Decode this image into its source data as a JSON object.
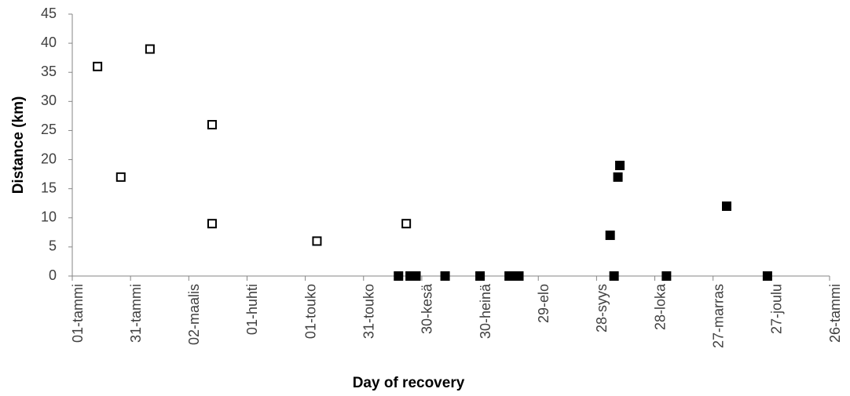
{
  "chart_data": {
    "type": "scatter",
    "x_label": "Day of recovery",
    "y_label": "Distance (km)",
    "xlim": [
      0,
      390
    ],
    "xticks": [
      {
        "value": 0,
        "label": "01-tammi"
      },
      {
        "value": 30,
        "label": "31-tammi"
      },
      {
        "value": 60,
        "label": "02-maalis"
      },
      {
        "value": 90,
        "label": "01-huhti"
      },
      {
        "value": 120,
        "label": "01-touko"
      },
      {
        "value": 150,
        "label": "31-touko"
      },
      {
        "value": 180,
        "label": "30-kesä"
      },
      {
        "value": 210,
        "label": "30-heinä"
      },
      {
        "value": 240,
        "label": "29-elo"
      },
      {
        "value": 270,
        "label": "28-syys"
      },
      {
        "value": 300,
        "label": "28-loka"
      },
      {
        "value": 330,
        "label": "27-marras"
      },
      {
        "value": 360,
        "label": "27-joulu"
      },
      {
        "value": 390,
        "label": "26-tammi"
      }
    ],
    "ylim": [
      0,
      45
    ],
    "yticks": [
      0,
      5,
      10,
      15,
      20,
      25,
      30,
      35,
      40,
      45
    ],
    "grid": false,
    "series": [
      {
        "color": "#000000",
        "fill": "#ffffff",
        "x": [
          13,
          25,
          40,
          72,
          72,
          126,
          172
        ],
        "values": [
          36,
          17,
          39,
          26,
          9,
          6,
          9
        ]
      },
      {
        "color": "#000000",
        "fill": "#000000",
        "x": [
          168,
          174,
          177,
          192,
          210,
          225,
          228,
          230,
          277,
          279,
          281,
          282,
          306,
          337,
          358
        ],
        "values": [
          0,
          0,
          0,
          0,
          0,
          0,
          0,
          0,
          7,
          0,
          17,
          19,
          0,
          12,
          0
        ]
      }
    ]
  }
}
